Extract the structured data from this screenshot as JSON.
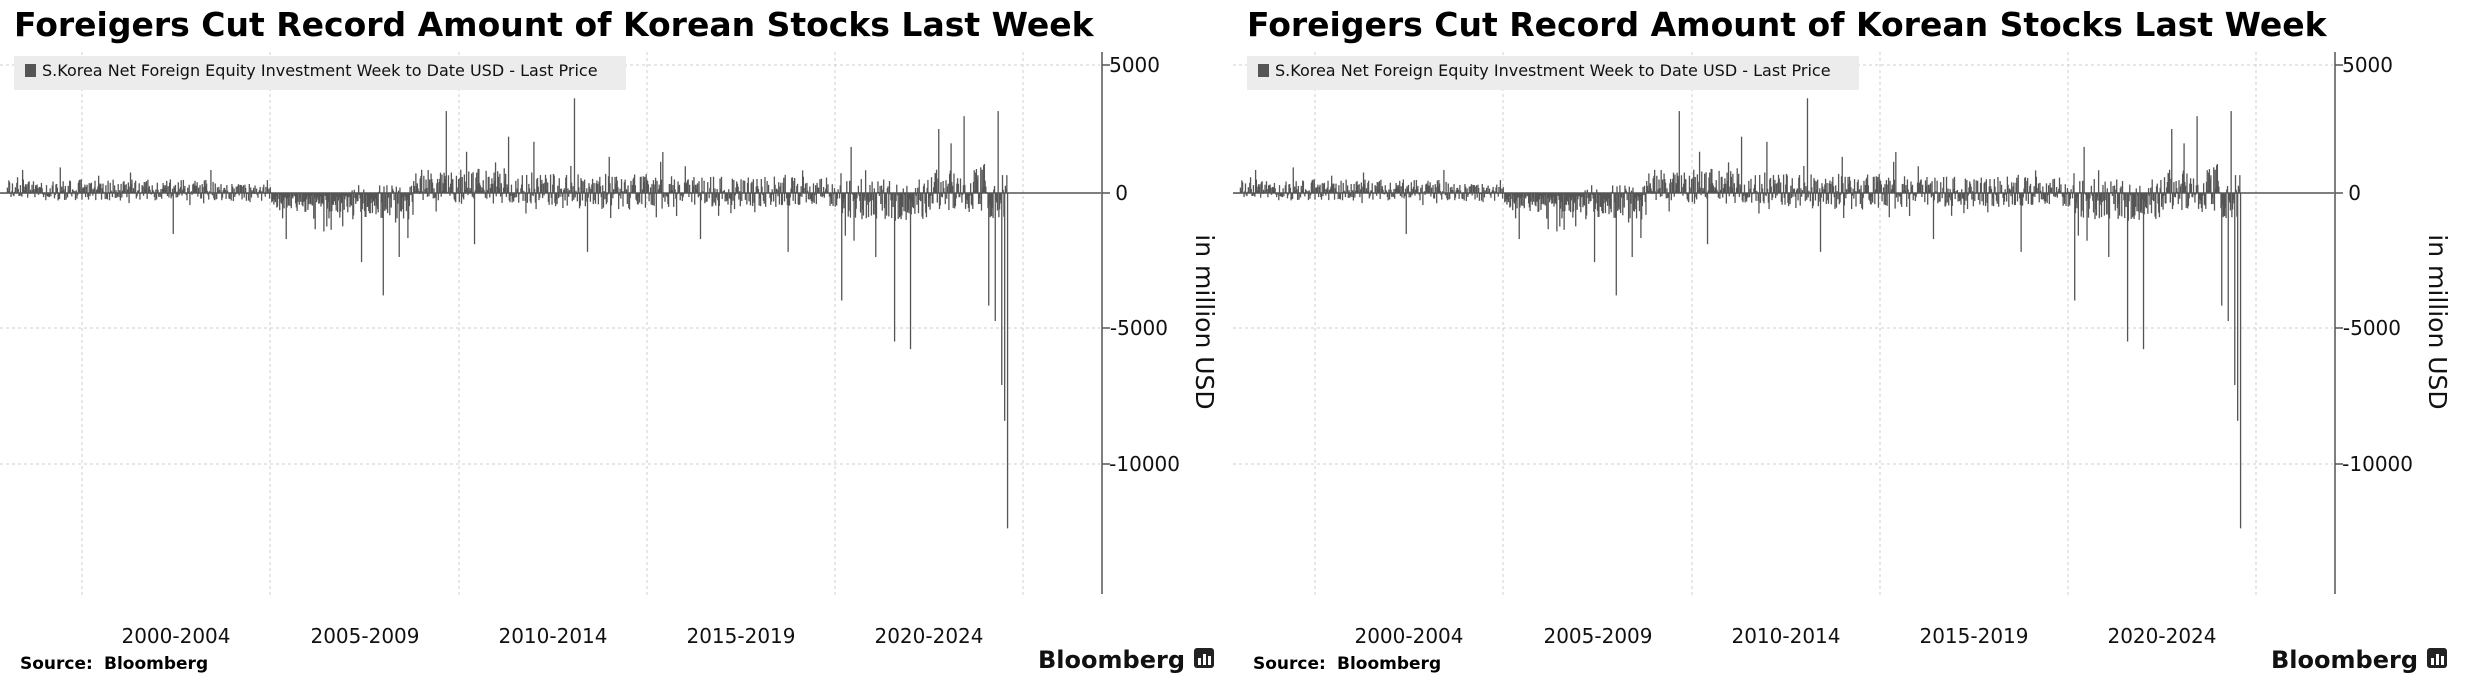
{
  "charts": [
    {
      "title": "Foreigers Cut Record Amount of Korean Stocks Last Week",
      "legend_label": "S.Korea Net Foreign Equity Investment Week to Date USD - Last Price",
      "y_axis_title": "in million USD",
      "y_ticks": [
        "5000",
        "0",
        "-5000",
        "-10000"
      ],
      "x_ticks": [
        "2000-2004",
        "2005-2009",
        "2010-2014",
        "2015-2019",
        "2020-2024"
      ],
      "source_label": "Source:",
      "source_value": "Bloomberg",
      "brand": "Bloomberg"
    },
    {
      "title": "Foreigers Cut Record Amount of Korean Stocks Last Week",
      "legend_label": "S.Korea Net Foreign Equity Investment Week to Date USD - Last Price",
      "y_axis_title": "in million USD",
      "y_ticks": [
        "5000",
        "0",
        "-5000",
        "-10000"
      ],
      "x_ticks": [
        "2000-2004",
        "2005-2009",
        "2010-2014",
        "2015-2019",
        "2020-2024"
      ],
      "source_label": "Source:",
      "source_value": "Bloomberg",
      "brand": "Bloomberg"
    }
  ],
  "colors": {
    "bars": "#555555",
    "grid": "#cfcfcf",
    "legend_bg": "#ececec",
    "text": "#000000"
  },
  "chart_data": [
    {
      "type": "bar",
      "title": "Foreigers Cut Record Amount of Korean Stocks Last Week",
      "ylabel": "in million USD",
      "ylim": [
        -14800,
        5200
      ],
      "x_range": [
        "1997",
        "2024-08"
      ],
      "y_axis_position": "right",
      "grid": true,
      "legend_position": "top-left",
      "series": [
        {
          "name": "S.Korea Net Foreign Equity Investment Week to Date USD - Last Price",
          "keypoints": [
            {
              "date": "1998-06",
              "value": 900
            },
            {
              "date": "1999-06",
              "value": 1000
            },
            {
              "date": "2002-06",
              "value": -1600
            },
            {
              "date": "2003-06",
              "value": 900
            },
            {
              "date": "2005-06",
              "value": -1800
            },
            {
              "date": "2006-06",
              "value": -1500
            },
            {
              "date": "2007-06",
              "value": -2700
            },
            {
              "date": "2008-01",
              "value": -4000
            },
            {
              "date": "2008-06",
              "value": -2500
            },
            {
              "date": "2009-09",
              "value": 3200
            },
            {
              "date": "2010-06",
              "value": -2000
            },
            {
              "date": "2011-05",
              "value": 2200
            },
            {
              "date": "2012-01",
              "value": 2000
            },
            {
              "date": "2013-02",
              "value": 3700
            },
            {
              "date": "2013-06",
              "value": -2300
            },
            {
              "date": "2015-06",
              "value": 1600
            },
            {
              "date": "2016-06",
              "value": -1800
            },
            {
              "date": "2018-10",
              "value": -2300
            },
            {
              "date": "2020-03",
              "value": -4200
            },
            {
              "date": "2020-06",
              "value": 1800
            },
            {
              "date": "2021-02",
              "value": -2500
            },
            {
              "date": "2021-08",
              "value": -5800
            },
            {
              "date": "2022-01",
              "value": -6100
            },
            {
              "date": "2022-10",
              "value": 2500
            },
            {
              "date": "2023-06",
              "value": 3000
            },
            {
              "date": "2024-02",
              "value": -4400
            },
            {
              "date": "2024-04",
              "value": -5000
            },
            {
              "date": "2024-05",
              "value": 3200
            },
            {
              "date": "2024-06",
              "value": -7500
            },
            {
              "date": "2024-07",
              "value": -8900
            },
            {
              "date": "2024-08",
              "value": -13100
            }
          ]
        }
      ]
    },
    {
      "type": "bar",
      "title": "Foreigers Cut Record Amount of Korean Stocks Last Week",
      "ylabel": "in million USD",
      "ylim": [
        -14800,
        5200
      ],
      "x_range": [
        "1997",
        "2024-08"
      ],
      "y_axis_position": "right",
      "grid": true,
      "legend_position": "top-left",
      "series": [
        {
          "name": "S.Korea Net Foreign Equity Investment Week to Date USD - Last Price",
          "keypoints": [
            {
              "date": "1998-06",
              "value": 900
            },
            {
              "date": "1999-06",
              "value": 1000
            },
            {
              "date": "2002-06",
              "value": -1600
            },
            {
              "date": "2003-06",
              "value": 900
            },
            {
              "date": "2005-06",
              "value": -1800
            },
            {
              "date": "2006-06",
              "value": -1500
            },
            {
              "date": "2007-06",
              "value": -2700
            },
            {
              "date": "2008-01",
              "value": -4000
            },
            {
              "date": "2008-06",
              "value": -2500
            },
            {
              "date": "2009-09",
              "value": 3200
            },
            {
              "date": "2010-06",
              "value": -2000
            },
            {
              "date": "2011-05",
              "value": 2200
            },
            {
              "date": "2012-01",
              "value": 2000
            },
            {
              "date": "2013-02",
              "value": 3700
            },
            {
              "date": "2013-06",
              "value": -2300
            },
            {
              "date": "2015-06",
              "value": 1600
            },
            {
              "date": "2016-06",
              "value": -1800
            },
            {
              "date": "2018-10",
              "value": -2300
            },
            {
              "date": "2020-03",
              "value": -4200
            },
            {
              "date": "2020-06",
              "value": 1800
            },
            {
              "date": "2021-02",
              "value": -2500
            },
            {
              "date": "2021-08",
              "value": -5800
            },
            {
              "date": "2022-01",
              "value": -6100
            },
            {
              "date": "2022-10",
              "value": 2500
            },
            {
              "date": "2023-06",
              "value": 3000
            },
            {
              "date": "2024-02",
              "value": -4400
            },
            {
              "date": "2024-04",
              "value": -5000
            },
            {
              "date": "2024-05",
              "value": 3200
            },
            {
              "date": "2024-06",
              "value": -7500
            },
            {
              "date": "2024-07",
              "value": -8900
            },
            {
              "date": "2024-08",
              "value": -13100
            }
          ]
        }
      ]
    }
  ]
}
